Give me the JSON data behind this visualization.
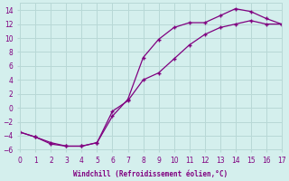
{
  "xlabel": "Windchill (Refroidissement éolien,°C)",
  "background_color": "#d4efed",
  "line_color": "#800080",
  "grid_color": "#b8d8d6",
  "xlim": [
    0,
    17
  ],
  "ylim": [
    -6,
    15
  ],
  "xticks": [
    0,
    1,
    2,
    3,
    4,
    5,
    6,
    7,
    8,
    9,
    10,
    11,
    12,
    13,
    14,
    15,
    16,
    17
  ],
  "yticks": [
    -6,
    -4,
    -2,
    0,
    2,
    4,
    6,
    8,
    10,
    12,
    14
  ],
  "curve1_x": [
    0,
    1,
    2,
    3,
    4,
    5,
    6,
    7,
    8,
    9,
    10,
    11,
    12,
    13,
    14,
    15,
    16,
    17
  ],
  "curve1_y": [
    -3.5,
    -4.2,
    -5.2,
    -5.5,
    -5.5,
    -5.0,
    -1.2,
    1.2,
    7.2,
    9.8,
    11.5,
    12.2,
    12.2,
    13.2,
    14.2,
    13.8,
    12.8,
    12.0
  ],
  "curve2_x": [
    0,
    1,
    2,
    3,
    4,
    5,
    6,
    7,
    8,
    9,
    10,
    11,
    12,
    13,
    14,
    15,
    16,
    17
  ],
  "curve2_y": [
    -3.5,
    -4.2,
    -5.0,
    -5.5,
    -5.5,
    -5.0,
    -0.5,
    1.0,
    4.0,
    5.0,
    7.0,
    9.0,
    10.5,
    11.5,
    12.0,
    12.5,
    12.0,
    12.0
  ]
}
